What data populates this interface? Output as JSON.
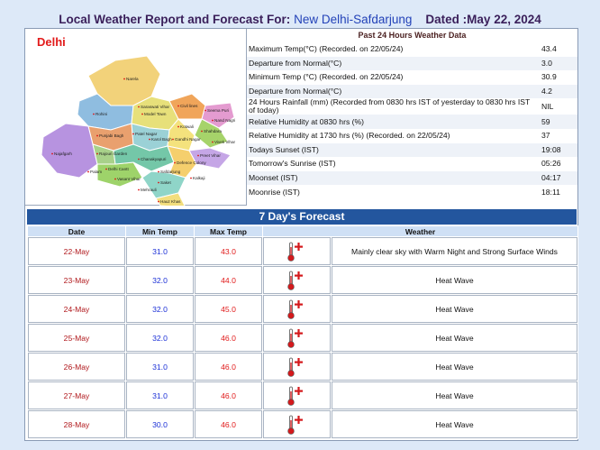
{
  "header": {
    "prefix": "Local Weather Report and Forecast For:",
    "station": "New Delhi-Safdarjung",
    "dated": "Dated :May 22, 2024"
  },
  "map": {
    "title": "Delhi",
    "regions": [
      "Narela",
      "Rohini",
      "Model Town",
      "Civil lines",
      "Seema Puri",
      "Saraswati Vihar",
      "Shahdara",
      "Punjabi Bagh",
      "Patel Nagar",
      "Karol Bagh",
      "Gandhi Nagar",
      "Preet Vihar",
      "Najafgarh",
      "Rajouri Garden",
      "Delhi Cantt",
      "Chanakyapuri",
      "Defence Colony",
      "Vasant Vihar",
      "Saket",
      "Kalkaji",
      "Mehrauli",
      "Safdarjung",
      "Hauz Khas",
      "Palam",
      "Vivek Vihar",
      "Nand Nagri",
      "Kotwali"
    ]
  },
  "observations": {
    "header": "Past 24 Hours Weather Data",
    "rows": [
      {
        "label": "Maximum Temp(°C) (Recorded. on 22/05/24)",
        "value": "43.4"
      },
      {
        "label": "Departure from Normal(°C)",
        "value": "3.0"
      },
      {
        "label": "Minimum Temp (°C) (Recorded. on 22/05/24)",
        "value": "30.9"
      },
      {
        "label": "Departure from Normal(°C)",
        "value": "4.2"
      },
      {
        "label": "24 Hours Rainfall (mm) (Recorded from 0830 hrs IST of yesterday to 0830 hrs IST of today)",
        "value": "NIL"
      },
      {
        "label": "Relative Humidity at 0830 hrs (%)",
        "value": "59"
      },
      {
        "label": "Relative Humidity at 1730 hrs (%) (Recorded. on 22/05/24)",
        "value": "37"
      },
      {
        "label": "Todays Sunset (IST)",
        "value": "19:08"
      },
      {
        "label": "Tomorrow's Sunrise (IST)",
        "value": "05:26"
      },
      {
        "label": "Moonset (IST)",
        "value": "04:17"
      },
      {
        "label": "Moonrise (IST)",
        "value": "18:11"
      }
    ]
  },
  "forecast": {
    "title": "7 Day's Forecast",
    "columns": {
      "date": "Date",
      "min": "Min Temp",
      "max": "Max Temp",
      "weather": "Weather"
    },
    "colors": {
      "min": "#1a2fd6",
      "max": "#e01919",
      "icon": "#d4191c"
    },
    "icon_name": "hot-thermometer-icon",
    "rows": [
      {
        "date": "22-May",
        "min": "31.0",
        "max": "43.0",
        "weather": "Mainly clear sky with Warm Night and Strong Surface Winds"
      },
      {
        "date": "23-May",
        "min": "32.0",
        "max": "44.0",
        "weather": "Heat Wave"
      },
      {
        "date": "24-May",
        "min": "32.0",
        "max": "45.0",
        "weather": "Heat Wave"
      },
      {
        "date": "25-May",
        "min": "32.0",
        "max": "46.0",
        "weather": "Heat Wave"
      },
      {
        "date": "26-May",
        "min": "31.0",
        "max": "46.0",
        "weather": "Heat Wave"
      },
      {
        "date": "27-May",
        "min": "31.0",
        "max": "46.0",
        "weather": "Heat Wave"
      },
      {
        "date": "28-May",
        "min": "30.0",
        "max": "46.0",
        "weather": "Heat Wave"
      }
    ]
  }
}
